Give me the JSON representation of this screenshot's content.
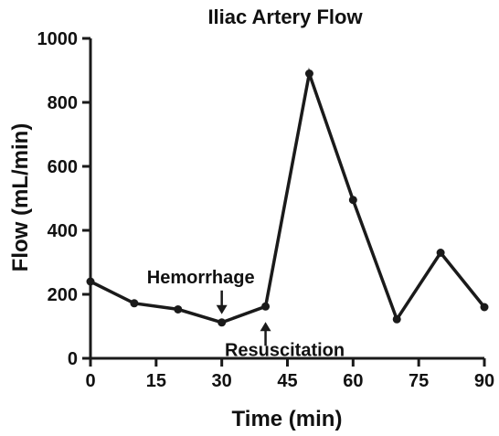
{
  "chart_data": {
    "type": "line",
    "title": "Iliac Artery Flow",
    "xlabel": "Time (min)",
    "ylabel": "Flow (mL/min)",
    "xlim": [
      0,
      90
    ],
    "ylim": [
      0,
      1000
    ],
    "xticks": [
      0,
      15,
      30,
      45,
      60,
      75,
      90
    ],
    "yticks": [
      0,
      200,
      400,
      600,
      800,
      1000
    ],
    "grid": false,
    "series": [
      {
        "x": [
          0,
          10,
          20,
          30,
          40,
          50,
          60,
          70,
          80,
          90
        ],
        "y": [
          240,
          172,
          153,
          112,
          162,
          890,
          495,
          122,
          330,
          160
        ]
      }
    ],
    "annotations": [
      {
        "text": "Hemorrhage",
        "x": 30,
        "arrow": "down"
      },
      {
        "text": "Resuscitation",
        "x": 40,
        "arrow": "up"
      }
    ]
  },
  "colors": {
    "line": "#1a1a1a",
    "text": "#111111"
  }
}
